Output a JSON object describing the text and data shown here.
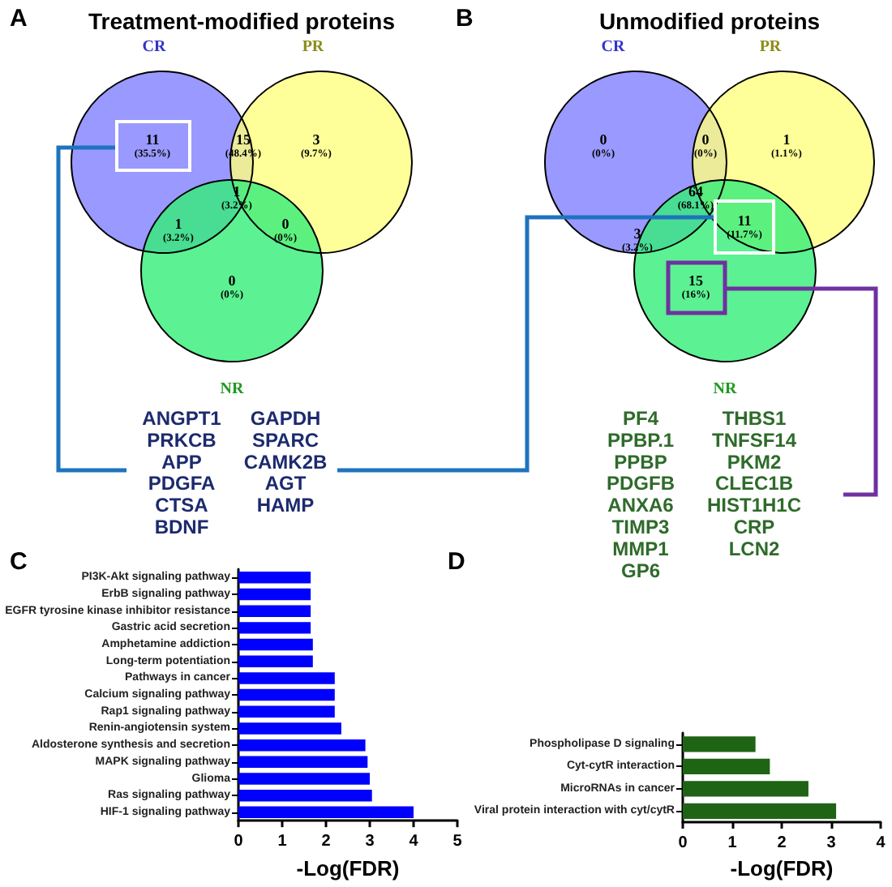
{
  "chart_data": [
    {
      "type": "other",
      "title": "Treatment-modified proteins",
      "annotations": [
        "A",
        "CR",
        "PR",
        "NR",
        "11",
        "3",
        "0",
        "15",
        "1",
        "0",
        "1",
        "(35.5%)",
        "(9.7%)",
        "(0%)",
        "(48.4%)",
        "(3.2%)",
        "(0%)",
        "(3.2%)",
        "ANGPT1",
        "PRKCB",
        "APP",
        "PDGFA",
        "CTSA",
        "BDNF",
        "GAPDH",
        "SPARC",
        "CAMK2B",
        "AGT",
        "HAMP"
      ]
    },
    {
      "type": "other",
      "title": "Unmodified proteins",
      "annotations": [
        "B",
        "CR",
        "PR",
        "NR",
        "0",
        "1",
        "15",
        "0",
        "3",
        "11",
        "64",
        "(0%)",
        "(1.1%)",
        "(16%)",
        "(0%)",
        "(3.2%)",
        "(11.7%)",
        "(68.1%)",
        "PF4",
        "PPBP.1",
        "PPBP",
        "PDGFB",
        "ANXA6",
        "TIMP3",
        "MMP1",
        "GP6",
        "THBS1",
        "TNFSF14",
        "PKM2",
        "CLEC1B",
        "HIST1H1C",
        "CRP",
        "LCN2"
      ]
    },
    {
      "type": "bar",
      "orientation": "horizontal",
      "color": "#0000ff",
      "xlabel": "-Log(FDR)",
      "xlim": [
        0,
        5
      ],
      "xticks": [
        0,
        1,
        2,
        3,
        4,
        5
      ],
      "annotations": [
        "C"
      ],
      "categories": [
        "PI3K-Akt signaling pathway",
        "ErbB signaling pathway",
        "EGFR tyrosine kinase inhibitor resistance",
        "Gastric acid secretion",
        "Amphetamine addiction",
        "Long-term potentiation",
        "Pathways in cancer",
        "Calcium signaling pathway",
        "Rap1 signaling pathway",
        "Renin-angiotensin system",
        "Aldosterone synthesis and secretion",
        "MAPK signaling pathway",
        "Glioma",
        "Ras signaling pathway",
        "HIF-1 signaling pathway"
      ],
      "values": [
        1.65,
        1.65,
        1.65,
        1.65,
        1.7,
        1.7,
        2.2,
        2.2,
        2.2,
        2.35,
        2.9,
        2.95,
        3.0,
        3.05,
        4.0
      ]
    },
    {
      "type": "bar",
      "orientation": "horizontal",
      "color": "#1e6414",
      "xlabel": "-Log(FDR)",
      "xlim": [
        0,
        4
      ],
      "xticks": [
        0,
        1,
        2,
        3,
        4
      ],
      "annotations": [
        "D"
      ],
      "categories": [
        "Phospholipase D signaling",
        "Cyt-cytR interaction",
        "MicroRNAs in cancer",
        "Viral protein interaction with cyt/cytR"
      ],
      "values": [
        1.47,
        1.76,
        2.54,
        3.1
      ]
    }
  ]
}
